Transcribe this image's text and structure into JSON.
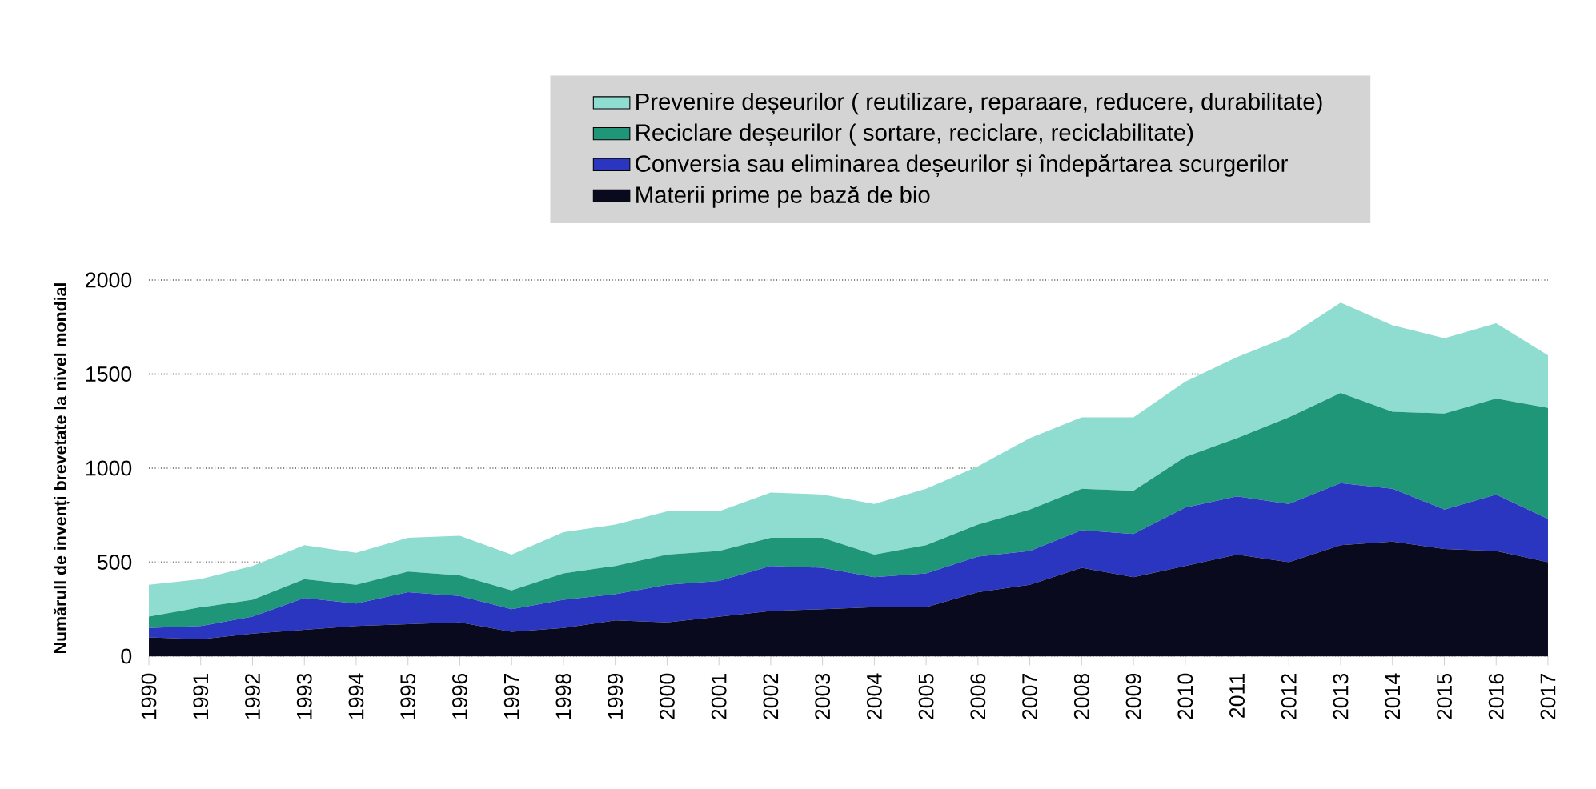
{
  "chart_data": {
    "type": "area",
    "stacked": true,
    "ylabel": "Numărull de invenți brevetate la nivel mondial",
    "categories": [
      "1990",
      "1991",
      "1992",
      "1993",
      "1994",
      "1995",
      "1996",
      "1997",
      "1998",
      "1999",
      "2000",
      "2001",
      "2002",
      "2003",
      "2004",
      "2005",
      "2006",
      "2007",
      "2008",
      "2009",
      "2010",
      "2011",
      "2012",
      "2013",
      "2014",
      "2015",
      "2016",
      "2017"
    ],
    "series": [
      {
        "name": "Materii prime pe bază de bio",
        "color": "#0a0a1e",
        "values": [
          100,
          90,
          120,
          140,
          160,
          170,
          180,
          130,
          150,
          190,
          180,
          210,
          240,
          250,
          260,
          260,
          340,
          380,
          470,
          420,
          480,
          540,
          500,
          590,
          610,
          570,
          560,
          500
        ]
      },
      {
        "name": "Conversia sau eliminarea deșeurilor și îndepărtarea scurgerilor",
        "color": "#2a35c0",
        "values": [
          50,
          70,
          90,
          170,
          120,
          170,
          140,
          120,
          150,
          140,
          200,
          190,
          240,
          220,
          160,
          180,
          190,
          180,
          200,
          230,
          310,
          310,
          310,
          330,
          280,
          210,
          300,
          230
        ]
      },
      {
        "name": "Reciclare deșeurilor ( sortare, reciclare, reciclabilitate)",
        "color": "#1f9678",
        "values": [
          60,
          100,
          90,
          100,
          100,
          110,
          110,
          100,
          140,
          150,
          160,
          160,
          150,
          160,
          120,
          150,
          170,
          220,
          220,
          230,
          270,
          310,
          460,
          480,
          410,
          510,
          510,
          590
        ]
      },
      {
        "name": "Prevenire deșeurilor ( reutilizare, reparaare, reducere, durabilitate)",
        "color": "#8fdcd0",
        "values": [
          170,
          150,
          180,
          180,
          170,
          180,
          210,
          190,
          220,
          220,
          230,
          210,
          240,
          230,
          270,
          300,
          310,
          380,
          380,
          390,
          400,
          430,
          430,
          480,
          460,
          400,
          400,
          280
        ]
      }
    ],
    "ylim": [
      0,
      2000
    ],
    "yticks": [
      0,
      500,
      1000,
      1500,
      2000
    ],
    "grid": "y",
    "legend": "top"
  }
}
